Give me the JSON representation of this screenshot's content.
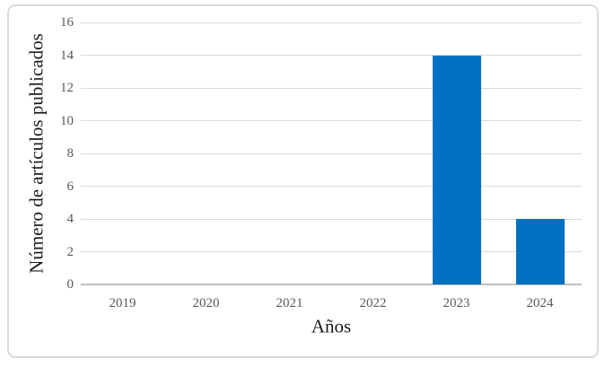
{
  "chart_data": {
    "type": "bar",
    "title": "",
    "xlabel": "Años",
    "ylabel": "Número de artículos publicados",
    "categories": [
      "2019",
      "2020",
      "2021",
      "2022",
      "2023",
      "2024"
    ],
    "values": [
      0,
      0,
      0,
      0,
      14,
      4
    ],
    "ylim": [
      0,
      16
    ],
    "yticks": [
      0,
      2,
      4,
      6,
      8,
      10,
      12,
      14,
      16
    ],
    "grid": true,
    "legend": "none"
  },
  "colors": {
    "bar": "#0070C0",
    "gridline": "#D9D9D9",
    "axis-line": "#BFBFBF",
    "tick-label": "#595959",
    "axis-title": "#1A1A1A",
    "frame-border": "#DBDBDB",
    "background": "#FFFFFF"
  }
}
